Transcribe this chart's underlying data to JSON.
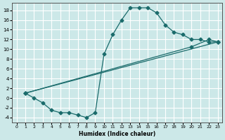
{
  "background_color": "#cce8e8",
  "grid_color": "#ffffff",
  "line_color": "#1a6b6b",
  "marker": "D",
  "marker_size": 2.5,
  "xlabel": "Humidex (Indice chaleur)",
  "xlim": [
    -0.5,
    23.5
  ],
  "ylim": [
    -5,
    19.5
  ],
  "xticks": [
    0,
    1,
    2,
    3,
    4,
    5,
    6,
    7,
    8,
    9,
    10,
    11,
    12,
    13,
    14,
    15,
    16,
    17,
    18,
    19,
    20,
    21,
    22,
    23
  ],
  "yticks": [
    -4,
    -2,
    0,
    2,
    4,
    6,
    8,
    10,
    12,
    14,
    16,
    18
  ],
  "curve1_x": [
    1,
    2,
    3,
    4,
    5,
    6,
    7,
    8,
    9,
    10,
    11,
    12,
    13,
    14,
    15,
    16,
    17,
    18,
    19,
    20,
    21,
    22,
    23
  ],
  "curve1_y": [
    1,
    0,
    -1,
    -2.5,
    -3,
    -3,
    -3.5,
    -4,
    -3,
    9,
    13,
    16,
    18.5,
    18.5,
    18.5,
    17.5,
    15,
    13.5,
    13,
    12,
    12,
    11.5,
    11.5
  ],
  "curve2_x": [
    1,
    23
  ],
  "curve2_y": [
    1,
    11.5
  ],
  "curve3_x": [
    1,
    20,
    22,
    23
  ],
  "curve3_y": [
    1,
    10.5,
    12,
    11.5
  ],
  "linewidth": 0.9
}
